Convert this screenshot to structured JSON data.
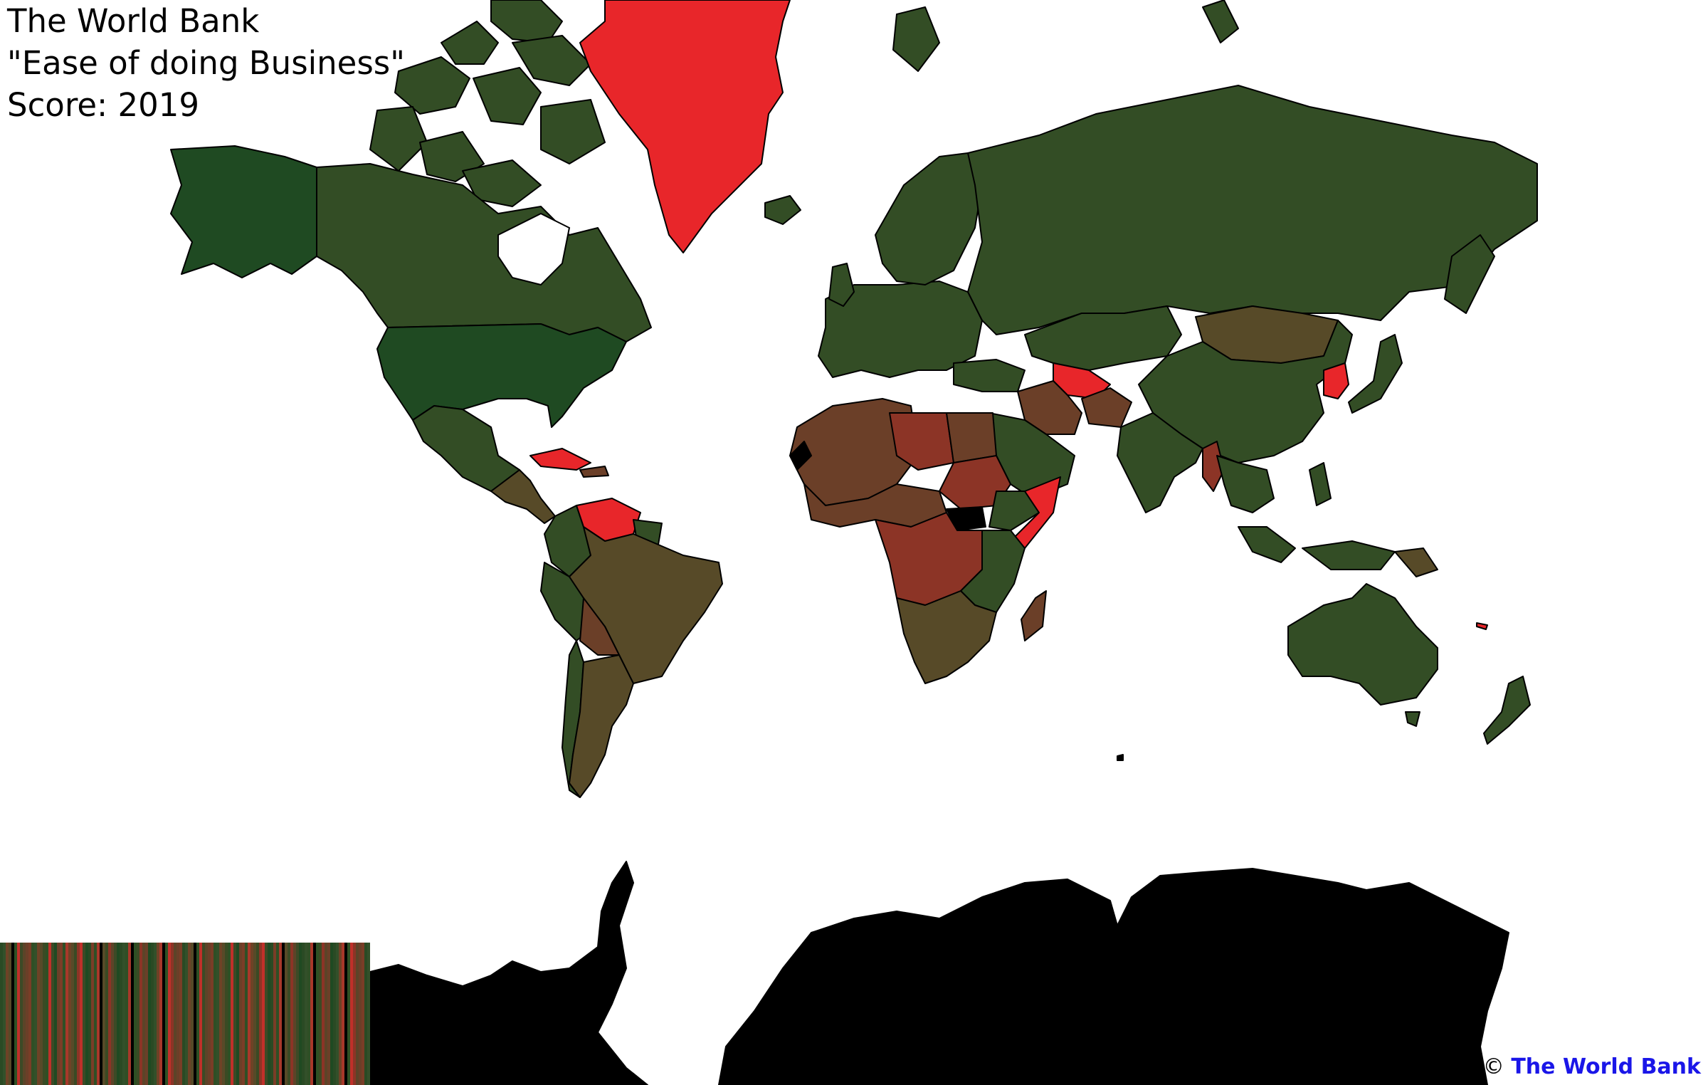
{
  "title": {
    "line1": "The World Bank",
    "line2": "\"Ease of doing Business\"",
    "line3": "Score: 2019"
  },
  "credit": {
    "symbol": "©",
    "source": "The World Bank"
  },
  "colors": {
    "high_score": "#1f4a22",
    "upper_mid": "#334d25",
    "mid": "#574a28",
    "lower_mid": "#6b3f28",
    "low_score": "#8c3426",
    "very_low": "#e8262a",
    "no_data": "#000000",
    "border": "#000000"
  },
  "legend": {
    "type": "color-gradient-strip",
    "colors": [
      "#2a4a24",
      "#6b3f28",
      "#3c4a26",
      "#8c3426",
      "#2e5024",
      "#574a28",
      "#a8382a",
      "#33502a",
      "#7a3d27",
      "#1f4a22",
      "#5c4428",
      "#c0302a",
      "#3a4a24",
      "#000000",
      "#6e4226",
      "#2f4f25"
    ]
  },
  "map": {
    "projection": "Mercator",
    "regions": [
      {
        "name": "Alaska",
        "shade": "high_score"
      },
      {
        "name": "Canada",
        "shade": "upper_mid"
      },
      {
        "name": "United States",
        "shade": "high_score"
      },
      {
        "name": "Greenland",
        "shade": "very_low"
      },
      {
        "name": "Mexico",
        "shade": "upper_mid"
      },
      {
        "name": "Central America",
        "shade": "mid"
      },
      {
        "name": "Cuba",
        "shade": "very_low"
      },
      {
        "name": "Venezuela",
        "shade": "very_low"
      },
      {
        "name": "Colombia",
        "shade": "upper_mid"
      },
      {
        "name": "Brazil",
        "shade": "mid"
      },
      {
        "name": "Bolivia",
        "shade": "lower_mid"
      },
      {
        "name": "Peru",
        "shade": "upper_mid"
      },
      {
        "name": "Argentina",
        "shade": "mid"
      },
      {
        "name": "Chile",
        "shade": "upper_mid"
      },
      {
        "name": "Europe",
        "shade": "upper_mid"
      },
      {
        "name": "Scandinavia",
        "shade": "upper_mid"
      },
      {
        "name": "Russia",
        "shade": "upper_mid"
      },
      {
        "name": "Kazakhstan",
        "shade": "upper_mid"
      },
      {
        "name": "Turkmenistan",
        "shade": "very_low"
      },
      {
        "name": "Mongolia",
        "shade": "mid"
      },
      {
        "name": "China",
        "shade": "upper_mid"
      },
      {
        "name": "North Korea",
        "shade": "very_low"
      },
      {
        "name": "Japan",
        "shade": "upper_mid"
      },
      {
        "name": "Iran",
        "shade": "lower_mid"
      },
      {
        "name": "Afghanistan",
        "shade": "lower_mid"
      },
      {
        "name": "Saudi Arabia",
        "shade": "upper_mid"
      },
      {
        "name": "India",
        "shade": "upper_mid"
      },
      {
        "name": "Myanmar",
        "shade": "low_score"
      },
      {
        "name": "Southeast Asia",
        "shade": "upper_mid"
      },
      {
        "name": "Indonesia",
        "shade": "upper_mid"
      },
      {
        "name": "North Africa",
        "shade": "lower_mid"
      },
      {
        "name": "Libya",
        "shade": "low_score"
      },
      {
        "name": "Western Sahara",
        "shade": "no_data"
      },
      {
        "name": "Sahel",
        "shade": "lower_mid"
      },
      {
        "name": "Sudan",
        "shade": "low_score"
      },
      {
        "name": "South Sudan",
        "shade": "no_data"
      },
      {
        "name": "Somalia",
        "shade": "very_low"
      },
      {
        "name": "Central Africa",
        "shade": "low_score"
      },
      {
        "name": "East Africa",
        "shade": "upper_mid"
      },
      {
        "name": "Southern Africa",
        "shade": "mid"
      },
      {
        "name": "Madagascar",
        "shade": "lower_mid"
      },
      {
        "name": "Australia",
        "shade": "upper_mid"
      },
      {
        "name": "New Zealand",
        "shade": "upper_mid"
      },
      {
        "name": "Antarctica",
        "shade": "no_data"
      }
    ]
  }
}
